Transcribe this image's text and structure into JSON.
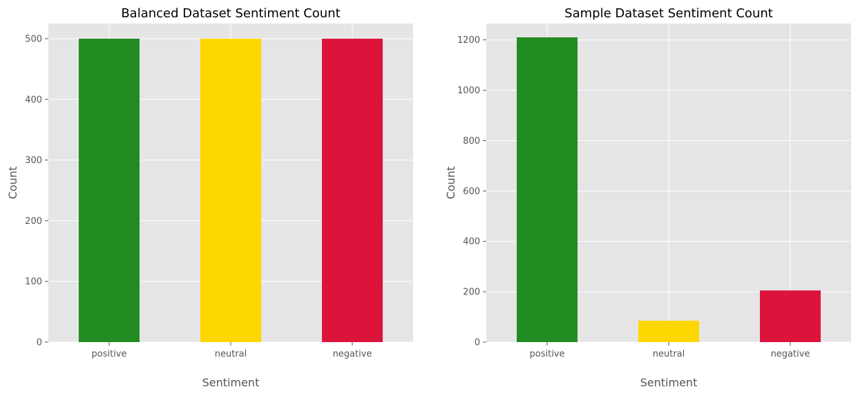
{
  "chart_data": [
    {
      "type": "bar",
      "title": "Balanced Dataset Sentiment Count",
      "xlabel": "Sentiment",
      "ylabel": "Count",
      "categories": [
        "positive",
        "neutral",
        "negative"
      ],
      "values": [
        500,
        500,
        500
      ],
      "colors": [
        "#228B22",
        "#FFD700",
        "#DC143C"
      ],
      "ylim": [
        0,
        525
      ],
      "yticks": [
        0,
        100,
        200,
        300,
        400,
        500
      ],
      "grid": true,
      "background": "#E5E5E5"
    },
    {
      "type": "bar",
      "title": "Sample Dataset Sentiment Count",
      "xlabel": "Sentiment",
      "ylabel": "Count",
      "categories": [
        "positive",
        "neutral",
        "negative"
      ],
      "values": [
        1210,
        85,
        205
      ],
      "colors": [
        "#228B22",
        "#FFD700",
        "#DC143C"
      ],
      "ylim": [
        0,
        1265
      ],
      "yticks": [
        0,
        200,
        400,
        600,
        800,
        1000,
        1200
      ],
      "grid": true,
      "background": "#E5E5E5"
    }
  ]
}
